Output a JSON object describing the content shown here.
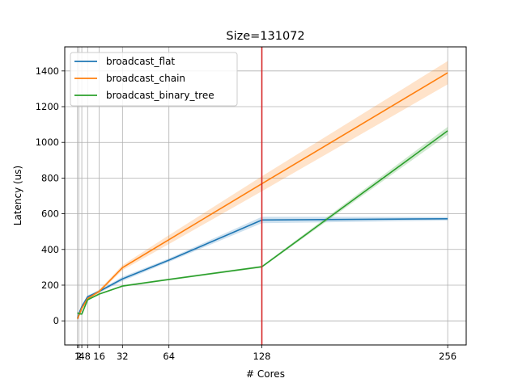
{
  "chart_data": {
    "type": "line",
    "title": "Size=131072",
    "xlabel": "# Cores",
    "ylabel": "Latency (us)",
    "xlim": [
      -7.75,
      268.75
    ],
    "ylim": [
      -135,
      1535
    ],
    "x_ticks": [
      1,
      2,
      4,
      8,
      16,
      32,
      64,
      128,
      256
    ],
    "x_tick_labels": [
      "1",
      "2",
      "4",
      "8",
      "16",
      "32",
      "64",
      "128",
      "256"
    ],
    "y_ticks": [
      0,
      200,
      400,
      600,
      800,
      1000,
      1200,
      1400
    ],
    "y_tick_labels": [
      "0",
      "200",
      "400",
      "600",
      "800",
      "1000",
      "1200",
      "1400"
    ],
    "grid": true,
    "legend_position": "top-left",
    "vline": {
      "x": 128,
      "color": "#d62728"
    },
    "series": [
      {
        "name": "broadcast_flat",
        "color": "#1f77b4",
        "x": [
          1,
          2,
          4,
          8,
          16,
          32,
          64,
          128,
          256
        ],
        "y": [
          12,
          40,
          80,
          135,
          165,
          235,
          340,
          565,
          572
        ],
        "band": [
          6,
          8,
          8,
          8,
          8,
          12,
          10,
          18,
          10
        ]
      },
      {
        "name": "broadcast_chain",
        "color": "#ff7f0e",
        "x": [
          1,
          2,
          4,
          8,
          16,
          32,
          64,
          128,
          256
        ],
        "y": [
          12,
          30,
          70,
          125,
          165,
          298,
          455,
          768,
          1390
        ],
        "band": [
          6,
          8,
          8,
          8,
          10,
          14,
          25,
          42,
          65
        ]
      },
      {
        "name": "broadcast_binary_tree",
        "color": "#2ca02c",
        "x": [
          1,
          2,
          4,
          8,
          16,
          32,
          64,
          128,
          256
        ],
        "y": [
          45,
          40,
          38,
          118,
          150,
          195,
          232,
          303,
          1065
        ],
        "band": [
          4,
          4,
          4,
          4,
          4,
          5,
          5,
          6,
          22
        ]
      }
    ]
  }
}
